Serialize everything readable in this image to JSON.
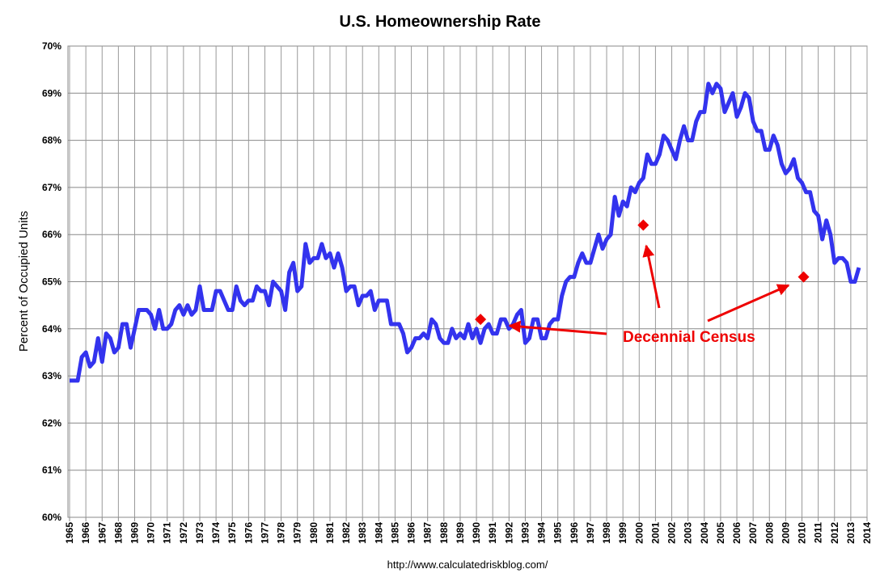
{
  "chart_data": {
    "type": "line",
    "title": "U.S. Homeownership Rate",
    "y_label": "Percent of Occupied Units",
    "source": "http://www.calculatedriskblog.com/",
    "annotation": "Decennial Census",
    "annotation_color": "#ee0000",
    "xlim": [
      1964.9,
      2014
    ],
    "ylim": [
      60,
      70
    ],
    "xticks": [
      1965,
      1966,
      1967,
      1968,
      1969,
      1970,
      1971,
      1972,
      1973,
      1974,
      1975,
      1976,
      1977,
      1978,
      1979,
      1980,
      1981,
      1982,
      1983,
      1984,
      1985,
      1986,
      1987,
      1988,
      1989,
      1990,
      1991,
      1992,
      1993,
      1994,
      1995,
      1996,
      1997,
      1998,
      1999,
      2000,
      2001,
      2002,
      2003,
      2004,
      2005,
      2006,
      2007,
      2008,
      2009,
      2010,
      2011,
      2012,
      2013,
      2014
    ],
    "yticks": [
      {
        "value": 60,
        "label": "60%"
      },
      {
        "value": 61,
        "label": "61%"
      },
      {
        "value": 62,
        "label": "62%"
      },
      {
        "value": 63,
        "label": "63%"
      },
      {
        "value": 64,
        "label": "64%"
      },
      {
        "value": 65,
        "label": "65%"
      },
      {
        "value": 66,
        "label": "66%"
      },
      {
        "value": 67,
        "label": "67%"
      },
      {
        "value": 68,
        "label": "68%"
      },
      {
        "value": 69,
        "label": "69%"
      },
      {
        "value": 70,
        "label": "70%"
      }
    ],
    "grid": true,
    "series": [
      {
        "type": "line",
        "color": "#3333ee",
        "x": [
          1965,
          1965.25,
          1965.5,
          1965.75,
          1966,
          1966.25,
          1966.5,
          1966.75,
          1967,
          1967.25,
          1967.5,
          1967.75,
          1968,
          1968.25,
          1968.5,
          1968.75,
          1969,
          1969.25,
          1969.5,
          1969.75,
          1970,
          1970.25,
          1970.5,
          1970.75,
          1971,
          1971.25,
          1971.5,
          1971.75,
          1972,
          1972.25,
          1972.5,
          1972.75,
          1973,
          1973.25,
          1973.5,
          1973.75,
          1974,
          1974.25,
          1974.5,
          1974.75,
          1975,
          1975.25,
          1975.5,
          1975.75,
          1976,
          1976.25,
          1976.5,
          1976.75,
          1977,
          1977.25,
          1977.5,
          1977.75,
          1978,
          1978.25,
          1978.5,
          1978.75,
          1979,
          1979.25,
          1979.5,
          1979.75,
          1980,
          1980.25,
          1980.5,
          1980.75,
          1981,
          1981.25,
          1981.5,
          1981.75,
          1982,
          1982.25,
          1982.5,
          1982.75,
          1983,
          1983.25,
          1983.5,
          1983.75,
          1984,
          1984.25,
          1984.5,
          1984.75,
          1985,
          1985.25,
          1985.5,
          1985.75,
          1986,
          1986.25,
          1986.5,
          1986.75,
          1987,
          1987.25,
          1987.5,
          1987.75,
          1988,
          1988.25,
          1988.5,
          1988.75,
          1989,
          1989.25,
          1989.5,
          1989.75,
          1990,
          1990.25,
          1990.5,
          1990.75,
          1991,
          1991.25,
          1991.5,
          1991.75,
          1992,
          1992.25,
          1992.5,
          1992.75,
          1993,
          1993.25,
          1993.5,
          1993.75,
          1994,
          1994.25,
          1994.5,
          1994.75,
          1995,
          1995.25,
          1995.5,
          1995.75,
          1996,
          1996.25,
          1996.5,
          1996.75,
          1997,
          1997.25,
          1997.5,
          1997.75,
          1998,
          1998.25,
          1998.5,
          1998.75,
          1999,
          1999.25,
          1999.5,
          1999.75,
          2000,
          2000.25,
          2000.5,
          2000.75,
          2001,
          2001.25,
          2001.5,
          2001.75,
          2002,
          2002.25,
          2002.5,
          2002.75,
          2003,
          2003.25,
          2003.5,
          2003.75,
          2004,
          2004.25,
          2004.5,
          2004.75,
          2005,
          2005.25,
          2005.5,
          2005.75,
          2006,
          2006.25,
          2006.5,
          2006.75,
          2007,
          2007.25,
          2007.5,
          2007.75,
          2008,
          2008.25,
          2008.5,
          2008.75,
          2009,
          2009.25,
          2009.5,
          2009.75,
          2010,
          2010.25,
          2010.5,
          2010.75,
          2011,
          2011.25,
          2011.5,
          2011.75,
          2012,
          2012.25,
          2012.5,
          2012.75,
          2013,
          2013.25,
          2013.5
        ],
        "values": [
          62.9,
          62.9,
          62.9,
          63.4,
          63.5,
          63.2,
          63.3,
          63.8,
          63.3,
          63.9,
          63.8,
          63.5,
          63.6,
          64.1,
          64.1,
          63.6,
          64.0,
          64.4,
          64.4,
          64.4,
          64.3,
          64.0,
          64.4,
          64.0,
          64.0,
          64.1,
          64.4,
          64.5,
          64.3,
          64.5,
          64.3,
          64.4,
          64.9,
          64.4,
          64.4,
          64.4,
          64.8,
          64.8,
          64.6,
          64.4,
          64.4,
          64.9,
          64.6,
          64.5,
          64.6,
          64.6,
          64.9,
          64.8,
          64.8,
          64.5,
          65.0,
          64.9,
          64.8,
          64.4,
          65.2,
          65.4,
          64.8,
          64.9,
          65.8,
          65.4,
          65.5,
          65.5,
          65.8,
          65.5,
          65.6,
          65.3,
          65.6,
          65.3,
          64.8,
          64.9,
          64.9,
          64.5,
          64.7,
          64.7,
          64.8,
          64.4,
          64.6,
          64.6,
          64.6,
          64.1,
          64.1,
          64.1,
          63.9,
          63.5,
          63.6,
          63.8,
          63.8,
          63.9,
          63.8,
          64.2,
          64.1,
          63.8,
          63.7,
          63.7,
          64.0,
          63.8,
          63.9,
          63.8,
          64.1,
          63.8,
          64.0,
          63.7,
          64.0,
          64.1,
          63.9,
          63.9,
          64.2,
          64.2,
          64.0,
          64.1,
          64.3,
          64.4,
          63.7,
          63.8,
          64.2,
          64.2,
          63.8,
          63.8,
          64.1,
          64.2,
          64.2,
          64.7,
          65.0,
          65.1,
          65.1,
          65.4,
          65.6,
          65.4,
          65.4,
          65.7,
          66.0,
          65.7,
          65.9,
          66.0,
          66.8,
          66.4,
          66.7,
          66.6,
          67.0,
          66.9,
          67.1,
          67.2,
          67.7,
          67.5,
          67.5,
          67.7,
          68.1,
          68.0,
          67.8,
          67.6,
          68.0,
          68.3,
          68.0,
          68.0,
          68.4,
          68.6,
          68.6,
          69.2,
          69.0,
          69.2,
          69.1,
          68.6,
          68.8,
          69.0,
          68.5,
          68.7,
          69.0,
          68.9,
          68.4,
          68.2,
          68.2,
          67.8,
          67.8,
          68.1,
          67.9,
          67.5,
          67.3,
          67.4,
          67.6,
          67.2,
          67.1,
          66.9,
          66.9,
          66.5,
          66.4,
          65.9,
          66.3,
          66.0,
          65.4,
          65.5,
          65.5,
          65.4,
          65.0,
          65.0,
          65.3
        ]
      },
      {
        "type": "scatter",
        "marker": "diamond",
        "color": "#ee0000",
        "x": [
          1990.25,
          2000.25,
          2010.1
        ],
        "values": [
          64.2,
          66.2,
          65.1
        ]
      }
    ]
  }
}
